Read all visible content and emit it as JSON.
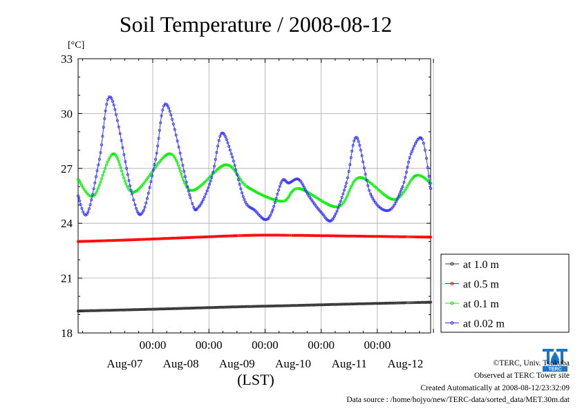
{
  "chart_data": {
    "type": "line",
    "title": "Soil Temperature / 2008-08-12",
    "y_unit": "[°C]",
    "xlabel": "(LST)",
    "ylim": [
      18,
      33
    ],
    "y_ticks": [
      18,
      21,
      24,
      27,
      30,
      33
    ],
    "x_range_days": [
      -0.33,
      5.95
    ],
    "x_tick_time_label": "00:00",
    "x_day_labels": [
      "Aug-07",
      "Aug-08",
      "Aug-09",
      "Aug-10",
      "Aug-11",
      "Aug-12"
    ],
    "grid": true,
    "legend_position": "right",
    "series": [
      {
        "name": "at 1.0 m",
        "color": "#333333",
        "x": [
          -0.33,
          0.5,
          1.5,
          2.5,
          3.5,
          4.5,
          5.5,
          5.95
        ],
        "y": [
          19.2,
          19.26,
          19.34,
          19.43,
          19.5,
          19.58,
          19.65,
          19.68
        ]
      },
      {
        "name": "at 0.5 m",
        "color": "#ff0000",
        "x": [
          -0.33,
          0.5,
          1.5,
          2.5,
          3.0,
          3.5,
          4.5,
          5.5,
          5.95
        ],
        "y": [
          23.0,
          23.08,
          23.2,
          23.32,
          23.35,
          23.34,
          23.3,
          23.26,
          23.24
        ]
      },
      {
        "name": "at 0.1 m",
        "color": "#00ee00",
        "x": [
          -0.33,
          -0.05,
          0.3,
          0.65,
          1.3,
          1.68,
          2.3,
          2.68,
          3.3,
          3.6,
          4.3,
          4.68,
          5.3,
          5.68,
          5.95
        ],
        "y": [
          26.4,
          25.5,
          27.8,
          25.7,
          27.8,
          25.8,
          27.2,
          26.0,
          25.2,
          25.9,
          24.9,
          26.5,
          25.3,
          26.6,
          26.2
        ]
      },
      {
        "name": "at 0.02 m",
        "color": "#3333ff",
        "x": [
          -0.33,
          -0.17,
          0.05,
          0.25,
          0.63,
          0.82,
          1.05,
          1.25,
          1.67,
          1.82,
          2.05,
          2.22,
          2.4,
          2.63,
          2.82,
          3.0,
          3.12,
          3.3,
          3.42,
          3.6,
          3.78,
          4.0,
          4.2,
          4.45,
          4.63,
          4.88,
          5.2,
          5.45,
          5.6,
          5.8,
          5.95
        ],
        "y": [
          25.5,
          24.5,
          27.5,
          30.9,
          25.6,
          24.6,
          27.5,
          30.5,
          25.4,
          24.9,
          26.5,
          28.9,
          27.8,
          25.3,
          24.7,
          24.2,
          24.6,
          26.3,
          26.2,
          26.4,
          25.5,
          24.6,
          24.2,
          26.2,
          28.7,
          25.6,
          24.7,
          26.0,
          27.8,
          28.6,
          25.9
        ]
      }
    ]
  },
  "footer": {
    "copyright": "©TERC, Univ. Tsukuba",
    "observed": "Observed at TERC Tower site",
    "created": "Created Automatically at 2008-08-12/23:32:09",
    "source": "Data source : /home/hojyo/new/TERC-data/sorted_data/MET.30m.dat"
  },
  "logo": {
    "text": "TERC",
    "color": "#1a74c8"
  }
}
